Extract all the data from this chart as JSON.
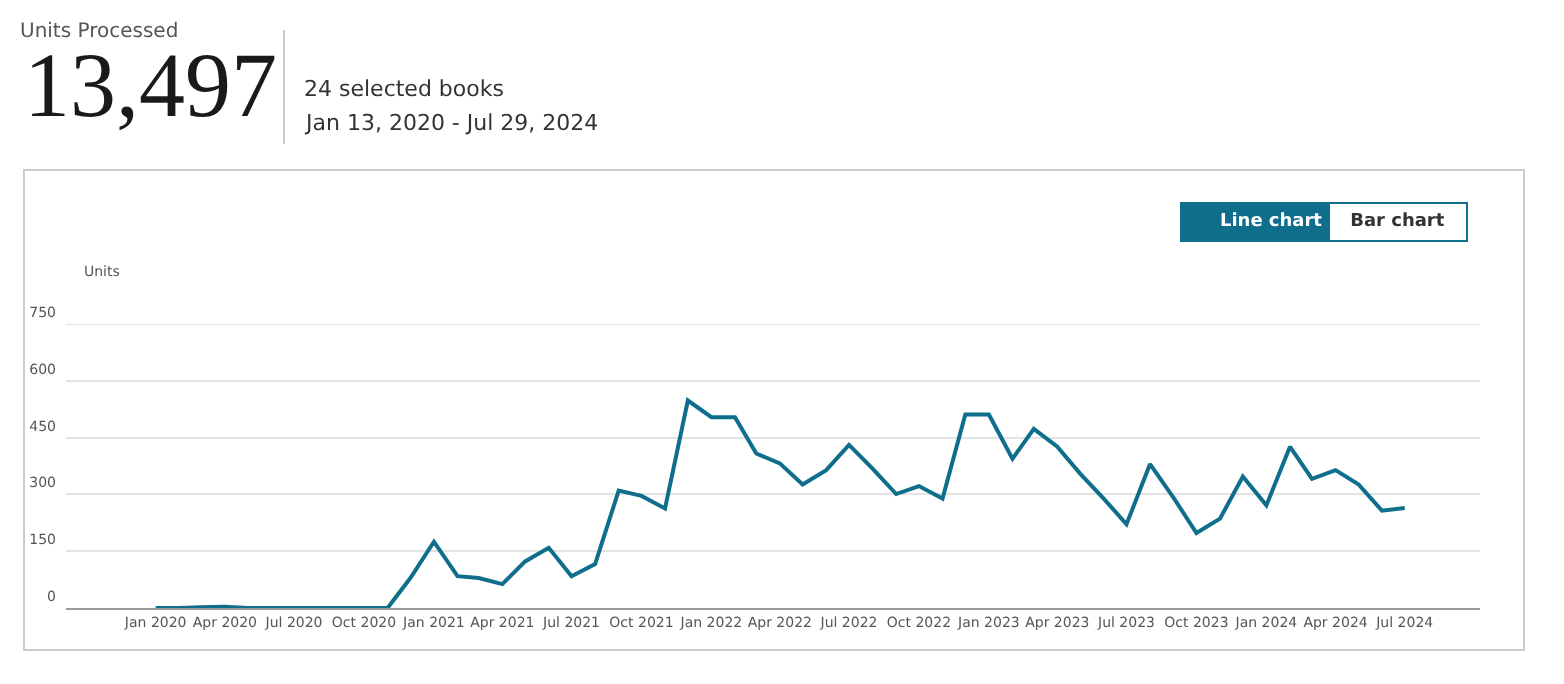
{
  "chart_data": {
    "type": "line",
    "title": "Units Processed",
    "ylabel": "Units",
    "annotations": [
      "13,497",
      "24 selected books",
      "Jan 13, 2020 - Jul 29, 2024",
      "Line chart",
      "Bar chart"
    ],
    "x": [
      "2020-01",
      "2020-02",
      "2020-03",
      "2020-04",
      "2020-05",
      "2020-06",
      "2020-07",
      "2020-08",
      "2020-09",
      "2020-10",
      "2020-11",
      "2020-12",
      "2021-01",
      "2021-02",
      "2021-03",
      "2021-04",
      "2021-05",
      "2021-06",
      "2021-07",
      "2021-08",
      "2021-09",
      "2021-10",
      "2021-11",
      "2021-12",
      "2022-01",
      "2022-02",
      "2022-03",
      "2022-04",
      "2022-05",
      "2022-06",
      "2022-07",
      "2022-08",
      "2022-09",
      "2022-10",
      "2022-11",
      "2022-12",
      "2023-01",
      "2023-02",
      "2023-03",
      "2023-04",
      "2023-05",
      "2023-06",
      "2023-07",
      "2023-08",
      "2023-09",
      "2023-10",
      "2023-11",
      "2023-12",
      "2024-01",
      "2024-02",
      "2024-03",
      "2024-04",
      "2024-05",
      "2024-06",
      "2024-07"
    ],
    "series": [
      {
        "color": "#0e6e8c",
        "values": [
          0,
          0,
          2,
          3,
          0,
          0,
          0,
          0,
          0,
          0,
          0,
          79,
          175,
          84,
          79,
          63,
          123,
          159,
          84,
          116,
          310,
          296,
          263,
          548,
          504,
          504,
          408,
          382,
          326,
          364,
          431,
          368,
          301,
          322,
          289,
          511,
          511,
          394,
          473,
          426,
          355,
          289,
          221,
          380,
          291,
          198,
          236,
          347,
          271,
          426,
          341,
          364,
          327,
          257,
          264
        ]
      }
    ],
    "xlim": [
      "2019-09-05",
      "2024-10-08"
    ],
    "xticks": [
      {
        "value": "2020-01",
        "label": "Jan 2020"
      },
      {
        "value": "2020-04",
        "label": "Apr 2020"
      },
      {
        "value": "2020-07",
        "label": "Jul 2020"
      },
      {
        "value": "2020-10",
        "label": "Oct 2020"
      },
      {
        "value": "2021-01",
        "label": "Jan 2021"
      },
      {
        "value": "2021-04",
        "label": "Apr 2021"
      },
      {
        "value": "2021-07",
        "label": "Jul 2021"
      },
      {
        "value": "2021-10",
        "label": "Oct 2021"
      },
      {
        "value": "2022-01",
        "label": "Jan 2022"
      },
      {
        "value": "2022-04",
        "label": "Apr 2022"
      },
      {
        "value": "2022-07",
        "label": "Jul 2022"
      },
      {
        "value": "2022-10",
        "label": "Oct 2022"
      },
      {
        "value": "2023-01",
        "label": "Jan 2023"
      },
      {
        "value": "2023-04",
        "label": "Apr 2023"
      },
      {
        "value": "2023-07",
        "label": "Jul 2023"
      },
      {
        "value": "2023-10",
        "label": "Oct 2023"
      },
      {
        "value": "2024-01",
        "label": "Jan 2024"
      },
      {
        "value": "2024-04",
        "label": "Apr 2024"
      },
      {
        "value": "2024-07",
        "label": "Jul 2024"
      }
    ],
    "ylim": [
      0,
      750
    ],
    "yticks": [
      0,
      150,
      300,
      450,
      600,
      750
    ],
    "grid": "y",
    "marker": "none",
    "line_style": "solid"
  }
}
